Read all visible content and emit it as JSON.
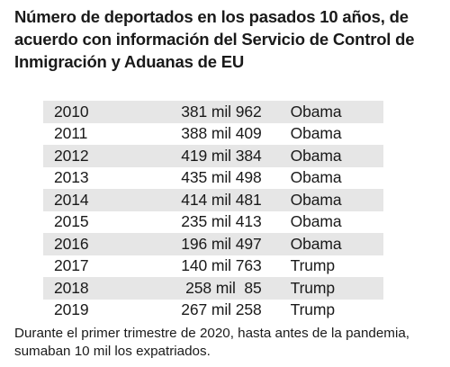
{
  "title": "Número de deportados en los pasados 10 años,  de acuerdo con información del Servicio de Control de Inmigración y Aduanas de EU",
  "colors": {
    "row_shade": "#e6e6e6",
    "text": "#1a1a1a"
  },
  "rows": [
    {
      "year": "2010",
      "value": "381 mil 962",
      "president": "Obama"
    },
    {
      "year": "2011",
      "value": "388 mil 409",
      "president": "Obama"
    },
    {
      "year": "2012",
      "value": "419 mil 384",
      "president": "Obama"
    },
    {
      "year": "2013",
      "value": "435 mil 498",
      "president": "Obama"
    },
    {
      "year": "2014",
      "value": "414 mil 481",
      "president": "Obama"
    },
    {
      "year": "2015",
      "value": "235 mil 413",
      "president": "Obama"
    },
    {
      "year": "2016",
      "value": "196 mil 497",
      "president": "Obama"
    },
    {
      "year": "2017",
      "value": "140 mil 763",
      "president": "Trump"
    },
    {
      "year": "2018",
      "value": "258 mil  85",
      "president": "Trump"
    },
    {
      "year": "2019",
      "value": "267 mil 258",
      "president": "Trump"
    }
  ],
  "footnote": "Durante el primer trimestre de 2020, hasta antes de la pandemia, sumaban 10 mil los expatriados."
}
